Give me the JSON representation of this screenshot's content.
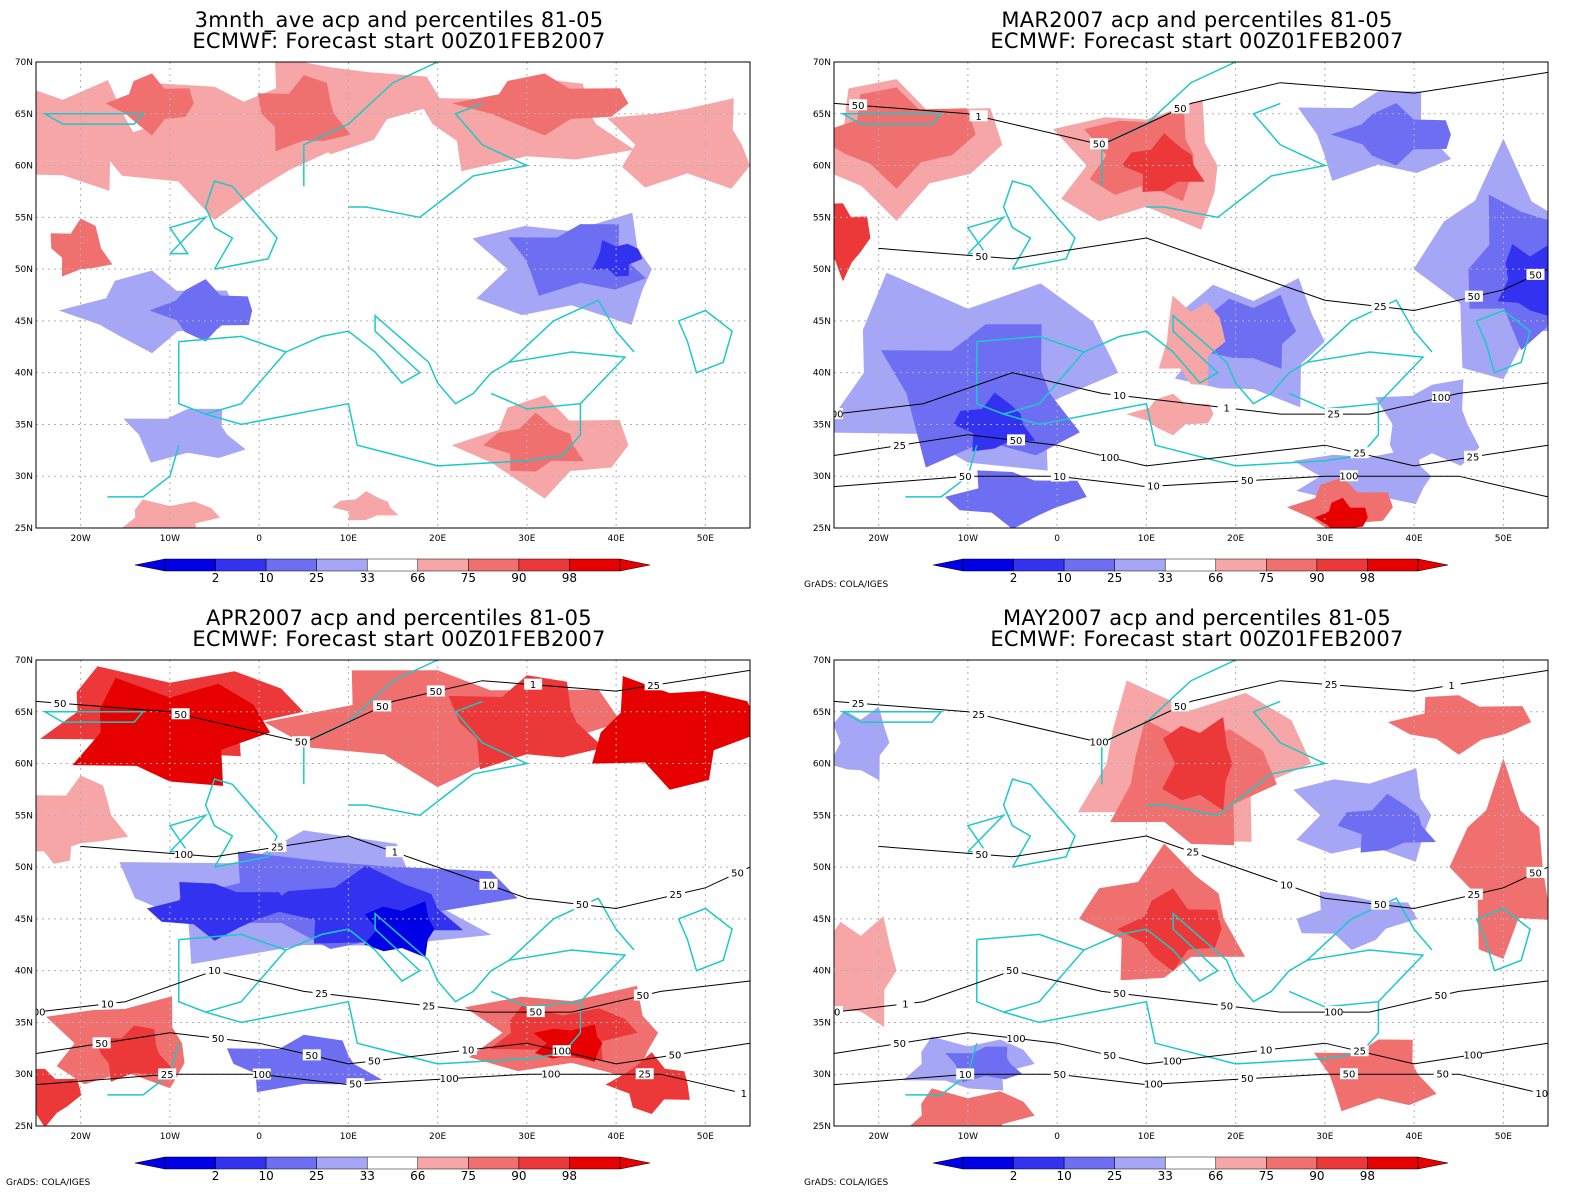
{
  "colors": {
    "blue_2": "#0000e6",
    "blue_10": "#3232f0",
    "blue_25": "#6e6ef2",
    "blue_33": "#a6a6f6",
    "red_66": "#f6a6a6",
    "red_75": "#f07070",
    "red_90": "#ec3838",
    "red_98": "#e60000",
    "coast": "#1ec8c8",
    "contour": "#000000",
    "grid": "#b0b0b0"
  },
  "axes": {
    "lat_labels": [
      "70N",
      "65N",
      "60N",
      "55N",
      "50N",
      "45N",
      "40N",
      "35N",
      "30N",
      "25N"
    ],
    "lon_labels": [
      "20W",
      "10W",
      "0",
      "10E",
      "20E",
      "30E",
      "40E",
      "50E"
    ]
  },
  "colorbar": {
    "labels": [
      "2",
      "10",
      "25",
      "33",
      "66",
      "75",
      "90",
      "98"
    ],
    "colors": [
      "#0000e6",
      "#3232f0",
      "#6e6ef2",
      "#a6a6f6",
      "#ffffff",
      "#f6a6a6",
      "#f07070",
      "#ec3838",
      "#e60000"
    ]
  },
  "panels": [
    {
      "title_line1": "3mnth_ave acp and percentiles 81-05",
      "title_line2": "ECMWF: Forecast start 00Z01FEB2007",
      "credit": "",
      "contour_labels": []
    },
    {
      "title_line1": "MAR2007 acp and percentiles 81-05",
      "title_line2": "ECMWF: Forecast start 00Z01FEB2007",
      "credit": "GrADS: COLA/IGES",
      "contour_labels": [
        "100",
        "100",
        "100",
        "50",
        "50",
        "100",
        "50",
        "50",
        "50",
        "50",
        "25",
        "25",
        "10",
        "50",
        "1",
        "1",
        "25",
        "10",
        "25",
        "50",
        "10",
        "25",
        "50"
      ]
    },
    {
      "title_line1": "APR2007 acp and percentiles 81-05",
      "title_line2": "ECMWF: Forecast start 00Z01FEB2007",
      "credit": "GrADS: COLA/IGES",
      "contour_labels": [
        "100",
        "50",
        "100",
        "100",
        "50",
        "50",
        "50",
        "100",
        "50",
        "50",
        "50",
        "50",
        "50",
        "25",
        "50",
        "25",
        "50",
        "100",
        "50",
        "50",
        "25",
        "100",
        "25",
        "10",
        "25",
        "10",
        "10",
        "1",
        "1",
        "1",
        "10",
        "50",
        "25",
        "25",
        "50"
      ]
    },
    {
      "title_line1": "MAY2007 acp and percentiles 81-05",
      "title_line2": "ECMWF: Forecast start 00Z01FEB2007",
      "credit": "GrADS: COLA/IGES",
      "contour_labels": [
        "50",
        "50",
        "50",
        "50",
        "50",
        "50",
        "100",
        "50",
        "50",
        "100",
        "100",
        "50",
        "100",
        "25",
        "25",
        "50",
        "100",
        "50",
        "50",
        "25",
        "50",
        "25",
        "10",
        "10",
        "1",
        "50",
        "10",
        "10",
        "25",
        "25",
        "1",
        "100",
        "50"
      ]
    }
  ]
}
